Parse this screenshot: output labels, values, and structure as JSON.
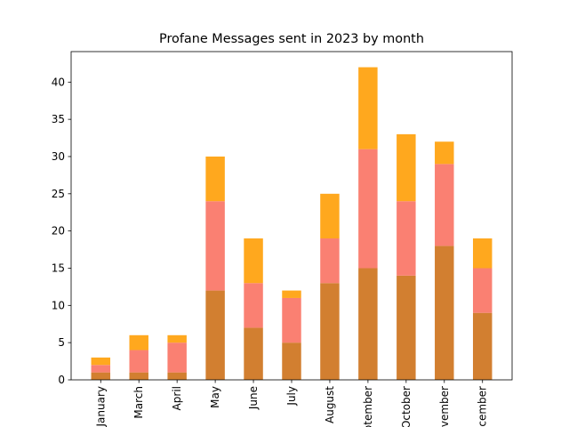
{
  "chart_data": {
    "type": "bar",
    "stacked": true,
    "title": "Profane Messages sent in 2023 by month",
    "categories": [
      "January",
      "March",
      "April",
      "May",
      "June",
      "July",
      "August",
      "September",
      "October",
      "November",
      "December"
    ],
    "series": [
      {
        "color": "#d27f30",
        "values": [
          1,
          1,
          1,
          12,
          7,
          5,
          13,
          15,
          14,
          18,
          9
        ]
      },
      {
        "color": "#fa8072",
        "values": [
          1,
          3,
          4,
          12,
          6,
          6,
          6,
          16,
          10,
          11,
          6
        ]
      },
      {
        "color": "#ffa81e",
        "values": [
          1,
          2,
          1,
          6,
          6,
          1,
          6,
          11,
          9,
          3,
          4
        ]
      }
    ],
    "ylim": [
      0,
      44.1
    ],
    "yticks": [
      0,
      5,
      10,
      15,
      20,
      25,
      30,
      35,
      40
    ]
  }
}
